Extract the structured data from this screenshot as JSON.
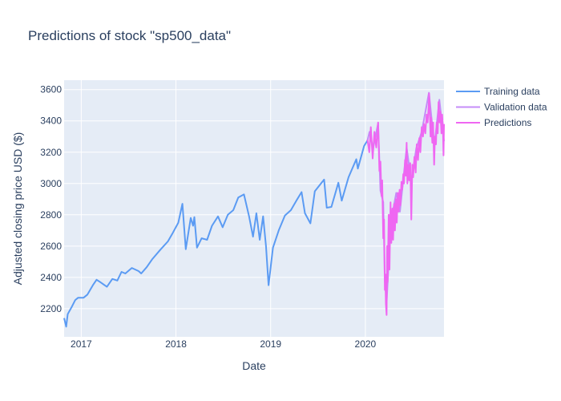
{
  "chart_data": {
    "type": "line",
    "title": "Predictions of stock \"sp500_data\"",
    "xlabel": "Date",
    "ylabel": "Adjusted closing price USD ($)",
    "xlim": [
      "2016-10-27",
      "2020-10-30"
    ],
    "ylim": [
      2020,
      3660
    ],
    "grid": true,
    "legend_position": "top-right",
    "plot_background": "#e5ecf6",
    "x_ticks": [
      "2017",
      "2018",
      "2019",
      "2020"
    ],
    "x_tick_dates": [
      "2017-01-01",
      "2018-01-01",
      "2019-01-01",
      "2020-01-01"
    ],
    "y_ticks": [
      2200,
      2400,
      2600,
      2800,
      3000,
      3200,
      3400,
      3600
    ],
    "series": [
      {
        "name": "Training data",
        "color": "#636efa",
        "line_color": "#5b9bf3",
        "points": [
          [
            "2016-10-27",
            2140
          ],
          [
            "2016-11-04",
            2085
          ],
          [
            "2016-11-10",
            2165
          ],
          [
            "2016-11-25",
            2210
          ],
          [
            "2016-12-09",
            2255
          ],
          [
            "2016-12-20",
            2270
          ],
          [
            "2017-01-10",
            2270
          ],
          [
            "2017-01-25",
            2290
          ],
          [
            "2017-02-15",
            2350
          ],
          [
            "2017-03-01",
            2385
          ],
          [
            "2017-03-15",
            2370
          ],
          [
            "2017-04-10",
            2340
          ],
          [
            "2017-05-01",
            2390
          ],
          [
            "2017-05-20",
            2380
          ],
          [
            "2017-06-05",
            2435
          ],
          [
            "2017-06-20",
            2425
          ],
          [
            "2017-07-15",
            2460
          ],
          [
            "2017-08-10",
            2440
          ],
          [
            "2017-08-20",
            2425
          ],
          [
            "2017-09-10",
            2465
          ],
          [
            "2017-10-01",
            2515
          ],
          [
            "2017-11-01",
            2575
          ],
          [
            "2017-12-01",
            2630
          ],
          [
            "2017-12-20",
            2685
          ],
          [
            "2018-01-10",
            2750
          ],
          [
            "2018-01-26",
            2870
          ],
          [
            "2018-02-08",
            2580
          ],
          [
            "2018-02-27",
            2780
          ],
          [
            "2018-03-08",
            2730
          ],
          [
            "2018-03-13",
            2785
          ],
          [
            "2018-03-23",
            2590
          ],
          [
            "2018-04-10",
            2650
          ],
          [
            "2018-05-01",
            2640
          ],
          [
            "2018-05-20",
            2730
          ],
          [
            "2018-06-12",
            2790
          ],
          [
            "2018-06-30",
            2720
          ],
          [
            "2018-07-20",
            2800
          ],
          [
            "2018-08-10",
            2830
          ],
          [
            "2018-08-29",
            2910
          ],
          [
            "2018-09-20",
            2930
          ],
          [
            "2018-10-10",
            2790
          ],
          [
            "2018-10-25",
            2660
          ],
          [
            "2018-11-07",
            2810
          ],
          [
            "2018-11-20",
            2640
          ],
          [
            "2018-12-03",
            2790
          ],
          [
            "2018-12-14",
            2600
          ],
          [
            "2018-12-24",
            2350
          ],
          [
            "2019-01-10",
            2590
          ],
          [
            "2019-02-01",
            2700
          ],
          [
            "2019-02-25",
            2795
          ],
          [
            "2019-03-20",
            2830
          ],
          [
            "2019-04-10",
            2890
          ],
          [
            "2019-04-30",
            2945
          ],
          [
            "2019-05-13",
            2810
          ],
          [
            "2019-06-03",
            2745
          ],
          [
            "2019-06-20",
            2950
          ],
          [
            "2019-07-26",
            3025
          ],
          [
            "2019-08-05",
            2845
          ],
          [
            "2019-08-23",
            2850
          ],
          [
            "2019-09-19",
            3005
          ],
          [
            "2019-10-02",
            2890
          ],
          [
            "2019-10-28",
            3040
          ],
          [
            "2019-11-27",
            3155
          ],
          [
            "2019-12-03",
            3095
          ],
          [
            "2019-12-27",
            3240
          ],
          [
            "2020-01-09",
            3275
          ]
        ]
      },
      {
        "name": "Validation data",
        "color": "#ab63fa",
        "line_color": "#c58cf8",
        "points": [
          [
            "2020-01-09",
            3275
          ],
          [
            "2020-01-17",
            3330
          ],
          [
            "2020-01-31",
            3225
          ],
          [
            "2020-02-19",
            3385
          ],
          [
            "2020-02-28",
            2955
          ],
          [
            "2020-03-10",
            2880
          ],
          [
            "2020-03-16",
            2385
          ],
          [
            "2020-03-23",
            2240
          ],
          [
            "2020-04-08",
            2750
          ],
          [
            "2020-04-29",
            2940
          ],
          [
            "2020-05-13",
            2820
          ],
          [
            "2020-06-08",
            3230
          ],
          [
            "2020-06-26",
            3010
          ],
          [
            "2020-07-15",
            3225
          ],
          [
            "2020-08-05",
            3330
          ],
          [
            "2020-09-02",
            3580
          ],
          [
            "2020-09-23",
            3240
          ],
          [
            "2020-10-12",
            3535
          ],
          [
            "2020-10-30",
            3270
          ]
        ]
      },
      {
        "name": "Predictions",
        "color": "#ef55f1",
        "line_color": "#ef67f2",
        "points": [
          [
            "2020-01-09",
            3280
          ],
          [
            "2020-01-16",
            3200
          ],
          [
            "2020-01-22",
            3360
          ],
          [
            "2020-01-29",
            3160
          ],
          [
            "2020-02-05",
            3330
          ],
          [
            "2020-02-12",
            3230
          ],
          [
            "2020-02-19",
            3390
          ],
          [
            "2020-02-24",
            3080
          ],
          [
            "2020-02-28",
            3140
          ],
          [
            "2020-03-03",
            2920
          ],
          [
            "2020-03-06",
            3020
          ],
          [
            "2020-03-10",
            2650
          ],
          [
            "2020-03-13",
            2770
          ],
          [
            "2020-03-16",
            2320
          ],
          [
            "2020-03-18",
            2420
          ],
          [
            "2020-03-20",
            2230
          ],
          [
            "2020-03-23",
            2160
          ],
          [
            "2020-03-25",
            2600
          ],
          [
            "2020-03-27",
            2370
          ],
          [
            "2020-03-31",
            2800
          ],
          [
            "2020-04-03",
            2450
          ],
          [
            "2020-04-07",
            2880
          ],
          [
            "2020-04-10",
            2620
          ],
          [
            "2020-04-14",
            2840
          ],
          [
            "2020-04-17",
            2640
          ],
          [
            "2020-04-21",
            2870
          ],
          [
            "2020-04-24",
            2700
          ],
          [
            "2020-04-28",
            2900
          ],
          [
            "2020-05-01",
            2750
          ],
          [
            "2020-05-05",
            2940
          ],
          [
            "2020-05-08",
            2820
          ],
          [
            "2020-05-12",
            2960
          ],
          [
            "2020-05-15",
            2860
          ],
          [
            "2020-05-19",
            3010
          ],
          [
            "2020-05-22",
            2960
          ],
          [
            "2020-05-26",
            3060
          ],
          [
            "2020-05-29",
            3000
          ],
          [
            "2020-06-02",
            3150
          ],
          [
            "2020-06-05",
            3050
          ],
          [
            "2020-06-08",
            3260
          ],
          [
            "2020-06-11",
            3000
          ],
          [
            "2020-06-15",
            3120
          ],
          [
            "2020-06-18",
            3020
          ],
          [
            "2020-06-22",
            3130
          ],
          [
            "2020-06-26",
            2770
          ],
          [
            "2020-06-30",
            3120
          ],
          [
            "2020-07-03",
            3040
          ],
          [
            "2020-07-08",
            3170
          ],
          [
            "2020-07-13",
            3070
          ],
          [
            "2020-07-17",
            3250
          ],
          [
            "2020-07-22",
            3150
          ],
          [
            "2020-07-27",
            3290
          ],
          [
            "2020-07-31",
            3200
          ],
          [
            "2020-08-05",
            3360
          ],
          [
            "2020-08-10",
            3300
          ],
          [
            "2020-08-14",
            3380
          ],
          [
            "2020-08-19",
            3320
          ],
          [
            "2020-08-24",
            3440
          ],
          [
            "2020-08-28",
            3390
          ],
          [
            "2020-09-01",
            3500
          ],
          [
            "2020-09-03",
            3575
          ],
          [
            "2020-09-08",
            3300
          ],
          [
            "2020-09-11",
            3420
          ],
          [
            "2020-09-15",
            3260
          ],
          [
            "2020-09-18",
            3390
          ],
          [
            "2020-09-22",
            3120
          ],
          [
            "2020-09-25",
            3300
          ],
          [
            "2020-09-29",
            3250
          ],
          [
            "2020-10-02",
            3390
          ],
          [
            "2020-10-06",
            3320
          ],
          [
            "2020-10-09",
            3520
          ],
          [
            "2020-10-13",
            3390
          ],
          [
            "2020-10-16",
            3460
          ],
          [
            "2020-10-20",
            3320
          ],
          [
            "2020-10-23",
            3440
          ],
          [
            "2020-10-26",
            3350
          ],
          [
            "2020-10-28",
            3180
          ],
          [
            "2020-10-30",
            3380
          ]
        ]
      }
    ]
  }
}
